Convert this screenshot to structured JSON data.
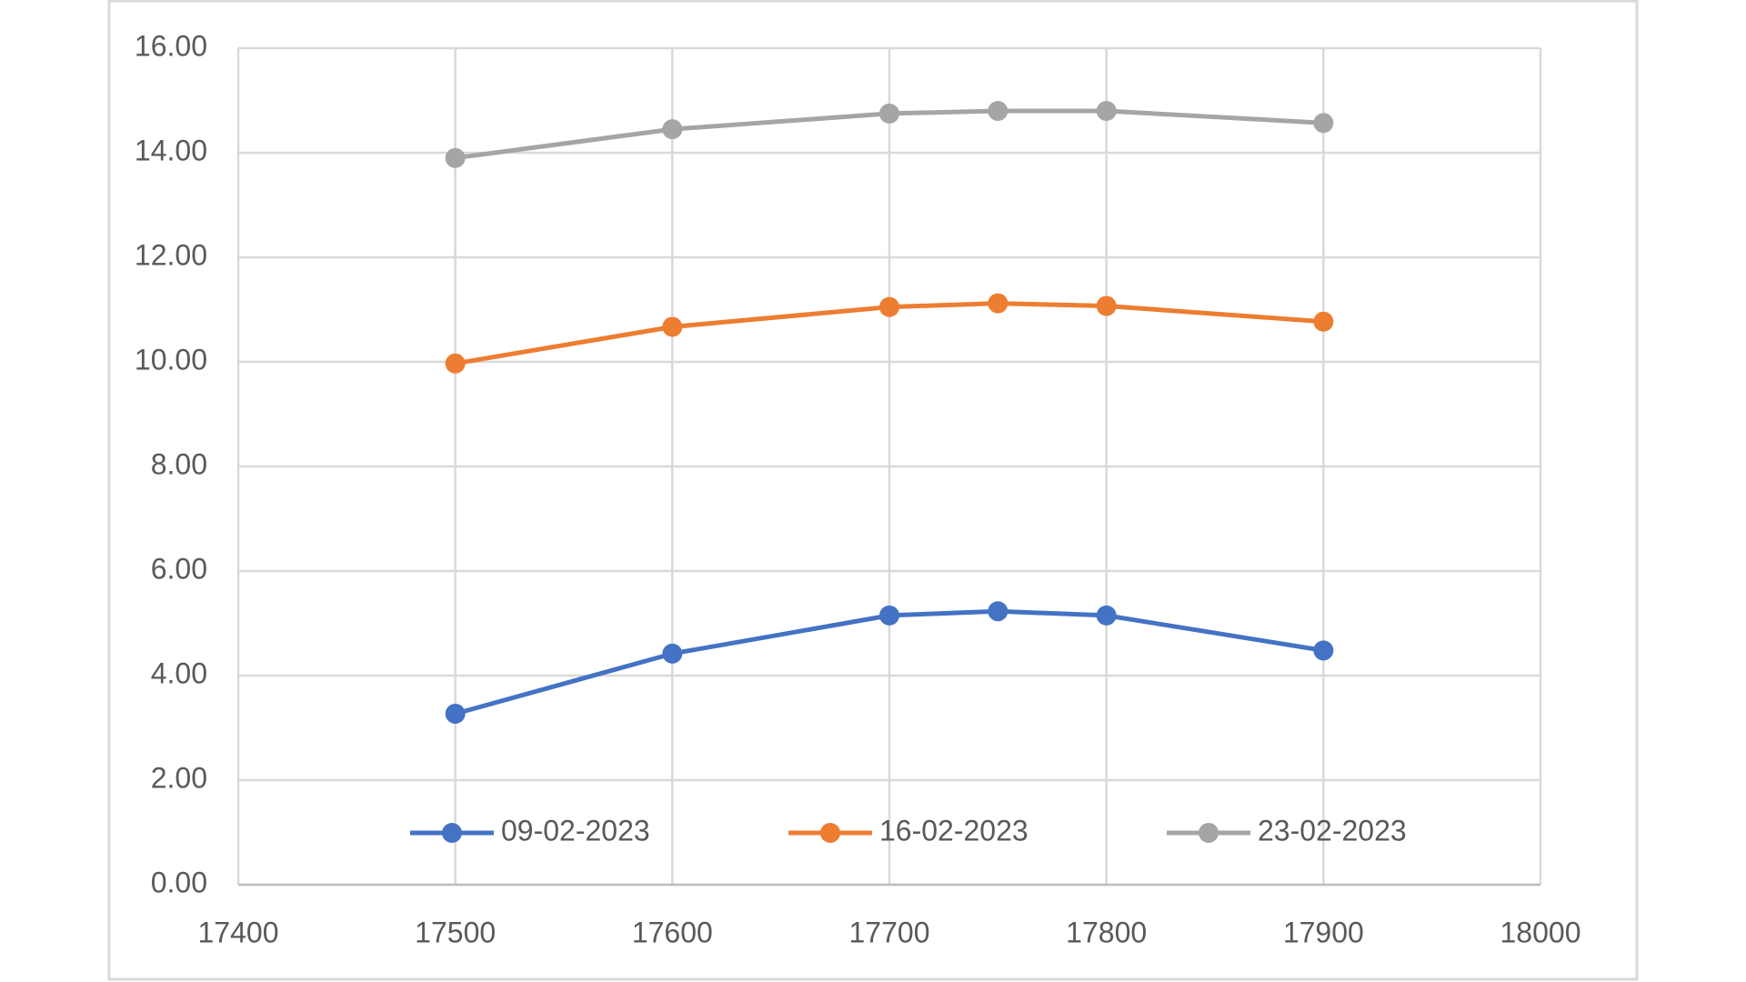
{
  "chart_data": {
    "type": "line",
    "x": [
      17500,
      17600,
      17700,
      17750,
      17800,
      17900
    ],
    "series": [
      {
        "name": "09-02-2023",
        "color": "#4472c4",
        "values": [
          3.27,
          4.42,
          5.15,
          5.23,
          5.15,
          4.48
        ]
      },
      {
        "name": "16-02-2023",
        "color": "#ed7d31",
        "values": [
          9.97,
          10.67,
          11.05,
          11.12,
          11.07,
          10.77
        ]
      },
      {
        "name": "23-02-2023",
        "color": "#a5a5a5",
        "values": [
          13.9,
          14.45,
          14.75,
          14.8,
          14.8,
          14.57
        ]
      }
    ],
    "xlim": [
      17400,
      18000
    ],
    "xticks": [
      17400,
      17500,
      17600,
      17700,
      17800,
      17900,
      18000
    ],
    "ylim": [
      0,
      16
    ],
    "yticks": [
      {
        "value": 0,
        "label": "0.00"
      },
      {
        "value": 2,
        "label": "2.00"
      },
      {
        "value": 4,
        "label": "4.00"
      },
      {
        "value": 6,
        "label": "6.00"
      },
      {
        "value": 8,
        "label": "8.00"
      },
      {
        "value": 10,
        "label": "10.00"
      },
      {
        "value": 12,
        "label": "12.00"
      },
      {
        "value": 14,
        "label": "14.00"
      },
      {
        "value": 16,
        "label": "16.00"
      }
    ],
    "grid": true,
    "legend": "bottom"
  }
}
